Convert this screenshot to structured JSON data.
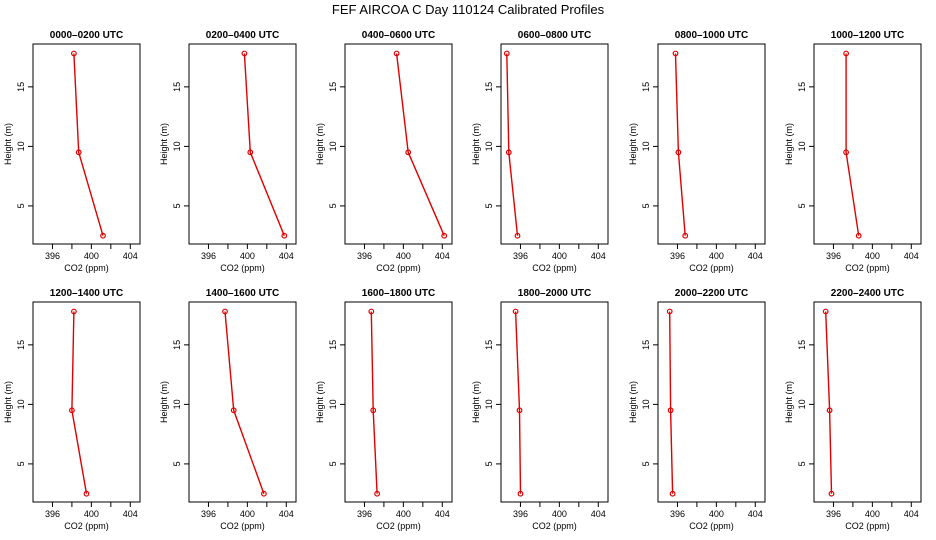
{
  "title": "FEF AIRCOA C  Day 110124  Calibrated Profiles",
  "chart_data": [
    {
      "type": "line",
      "title": "0000–0200 UTC",
      "xlabel": "CO2 (ppm)",
      "ylabel": "Height (m)",
      "x": [
        401.2,
        398.7,
        398.2
      ],
      "y": [
        2.5,
        9.5,
        17.8
      ],
      "xlim": [
        394,
        405
      ],
      "ylim": [
        1.8,
        18.6
      ],
      "xticks": [
        396,
        398,
        400,
        402,
        404
      ],
      "xtick_labels": [
        "396",
        "",
        "400",
        "",
        "404"
      ],
      "yticks": [
        5,
        10,
        15
      ],
      "ytick_labels": [
        "5",
        "10",
        "15"
      ]
    },
    {
      "type": "line",
      "title": "0200–0400 UTC",
      "xlabel": "CO2 (ppm)",
      "ylabel": "Height (m)",
      "x": [
        403.8,
        400.3,
        399.7
      ],
      "y": [
        2.5,
        9.5,
        17.8
      ],
      "xlim": [
        394,
        405
      ],
      "ylim": [
        1.8,
        18.6
      ],
      "xticks": [
        396,
        398,
        400,
        402,
        404
      ],
      "xtick_labels": [
        "396",
        "",
        "400",
        "",
        "404"
      ],
      "yticks": [
        5,
        10,
        15
      ],
      "ytick_labels": [
        "5",
        "10",
        "15"
      ]
    },
    {
      "type": "line",
      "title": "0400–0600 UTC",
      "xlabel": "CO2 (ppm)",
      "ylabel": "Height (m)",
      "x": [
        404.2,
        400.5,
        399.3
      ],
      "y": [
        2.5,
        9.5,
        17.8
      ],
      "xlim": [
        394,
        405
      ],
      "ylim": [
        1.8,
        18.6
      ],
      "xticks": [
        396,
        398,
        400,
        402,
        404
      ],
      "xtick_labels": [
        "396",
        "",
        "400",
        "",
        "404"
      ],
      "yticks": [
        5,
        10,
        15
      ],
      "ytick_labels": [
        "5",
        "10",
        "15"
      ]
    },
    {
      "type": "line",
      "title": "0600–0800 UTC",
      "xlabel": "CO2 (ppm)",
      "ylabel": "Height (m)",
      "x": [
        395.7,
        394.8,
        394.6
      ],
      "y": [
        2.5,
        9.5,
        17.8
      ],
      "xlim": [
        394,
        405
      ],
      "ylim": [
        1.8,
        18.6
      ],
      "xticks": [
        396,
        398,
        400,
        402,
        404
      ],
      "xtick_labels": [
        "396",
        "",
        "400",
        "",
        "404"
      ],
      "yticks": [
        5,
        10,
        15
      ],
      "ytick_labels": [
        "5",
        "10",
        "15"
      ]
    },
    {
      "type": "line",
      "title": "0800–1000 UTC",
      "xlabel": "CO2 (ppm)",
      "ylabel": "Height (m)",
      "x": [
        396.8,
        396.1,
        395.8
      ],
      "y": [
        2.5,
        9.5,
        17.8
      ],
      "xlim": [
        394,
        405
      ],
      "ylim": [
        1.8,
        18.6
      ],
      "xticks": [
        396,
        398,
        400,
        402,
        404
      ],
      "xtick_labels": [
        "396",
        "",
        "400",
        "",
        "404"
      ],
      "yticks": [
        5,
        10,
        15
      ],
      "ytick_labels": [
        "5",
        "10",
        "15"
      ]
    },
    {
      "type": "line",
      "title": "1000–1200 UTC",
      "xlabel": "CO2 (ppm)",
      "ylabel": "Height (m)",
      "x": [
        398.6,
        397.3,
        397.3
      ],
      "y": [
        2.5,
        9.5,
        17.8
      ],
      "xlim": [
        394,
        405
      ],
      "ylim": [
        1.8,
        18.6
      ],
      "xticks": [
        396,
        398,
        400,
        402,
        404
      ],
      "xtick_labels": [
        "396",
        "",
        "400",
        "",
        "404"
      ],
      "yticks": [
        5,
        10,
        15
      ],
      "ytick_labels": [
        "5",
        "10",
        "15"
      ]
    },
    {
      "type": "line",
      "title": "1200–1400 UTC",
      "xlabel": "CO2 (ppm)",
      "ylabel": "Height (m)",
      "x": [
        399.5,
        398.0,
        398.2
      ],
      "y": [
        2.5,
        9.5,
        17.8
      ],
      "xlim": [
        394,
        405
      ],
      "ylim": [
        1.8,
        18.6
      ],
      "xticks": [
        396,
        398,
        400,
        402,
        404
      ],
      "xtick_labels": [
        "396",
        "",
        "400",
        "",
        "404"
      ],
      "yticks": [
        5,
        10,
        15
      ],
      "ytick_labels": [
        "5",
        "10",
        "15"
      ]
    },
    {
      "type": "line",
      "title": "1400–1600 UTC",
      "xlabel": "CO2 (ppm)",
      "ylabel": "Height (m)",
      "x": [
        401.7,
        398.6,
        397.7
      ],
      "y": [
        2.5,
        9.5,
        17.8
      ],
      "xlim": [
        394,
        405
      ],
      "ylim": [
        1.8,
        18.6
      ],
      "xticks": [
        396,
        398,
        400,
        402,
        404
      ],
      "xtick_labels": [
        "396",
        "",
        "400",
        "",
        "404"
      ],
      "yticks": [
        5,
        10,
        15
      ],
      "ytick_labels": [
        "5",
        "10",
        "15"
      ]
    },
    {
      "type": "line",
      "title": "1600–1800 UTC",
      "xlabel": "CO2 (ppm)",
      "ylabel": "Height (m)",
      "x": [
        397.3,
        396.9,
        396.7
      ],
      "y": [
        2.5,
        9.5,
        17.8
      ],
      "xlim": [
        394,
        405
      ],
      "ylim": [
        1.8,
        18.6
      ],
      "xticks": [
        396,
        398,
        400,
        402,
        404
      ],
      "xtick_labels": [
        "396",
        "",
        "400",
        "",
        "404"
      ],
      "yticks": [
        5,
        10,
        15
      ],
      "ytick_labels": [
        "5",
        "10",
        "15"
      ]
    },
    {
      "type": "line",
      "title": "1800–2000 UTC",
      "xlabel": "CO2 (ppm)",
      "ylabel": "Height (m)",
      "x": [
        396.0,
        395.9,
        395.5
      ],
      "y": [
        2.5,
        9.5,
        17.8
      ],
      "xlim": [
        394,
        405
      ],
      "ylim": [
        1.8,
        18.6
      ],
      "xticks": [
        396,
        398,
        400,
        402,
        404
      ],
      "xtick_labels": [
        "396",
        "",
        "400",
        "",
        "404"
      ],
      "yticks": [
        5,
        10,
        15
      ],
      "ytick_labels": [
        "5",
        "10",
        "15"
      ]
    },
    {
      "type": "line",
      "title": "2000–2200 UTC",
      "xlabel": "CO2 (ppm)",
      "ylabel": "Height (m)",
      "x": [
        395.5,
        395.3,
        395.2
      ],
      "y": [
        2.5,
        9.5,
        17.8
      ],
      "xlim": [
        394,
        405
      ],
      "ylim": [
        1.8,
        18.6
      ],
      "xticks": [
        396,
        398,
        400,
        402,
        404
      ],
      "xtick_labels": [
        "396",
        "",
        "400",
        "",
        "404"
      ],
      "yticks": [
        5,
        10,
        15
      ],
      "ytick_labels": [
        "5",
        "10",
        "15"
      ]
    },
    {
      "type": "line",
      "title": "2200–2400 UTC",
      "xlabel": "CO2 (ppm)",
      "ylabel": "Height (m)",
      "x": [
        395.8,
        395.6,
        395.2
      ],
      "y": [
        2.5,
        9.5,
        17.8
      ],
      "xlim": [
        394,
        405
      ],
      "ylim": [
        1.8,
        18.6
      ],
      "xticks": [
        396,
        398,
        400,
        402,
        404
      ],
      "xtick_labels": [
        "396",
        "",
        "400",
        "",
        "404"
      ],
      "yticks": [
        5,
        10,
        15
      ],
      "ytick_labels": [
        "5",
        "10",
        "15"
      ]
    }
  ],
  "colors": {
    "line": "#e00000",
    "marker": "#e00000",
    "axis": "#000000"
  }
}
